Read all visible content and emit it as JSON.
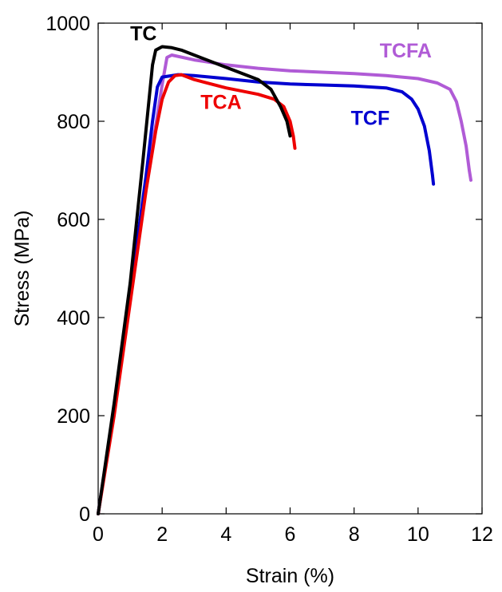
{
  "chart_data": {
    "type": "line",
    "xlabel": "Strain (%)",
    "ylabel": "Stress (MPa)",
    "xlim": [
      0,
      12
    ],
    "ylim": [
      0,
      1000
    ],
    "xticks": [
      0,
      2,
      4,
      6,
      8,
      10,
      12
    ],
    "yticks": [
      0,
      200,
      400,
      600,
      800,
      1000
    ],
    "grid": false,
    "series": [
      {
        "name": "TCFA",
        "color": "#b05bd6",
        "label_at": [
          8.8,
          930
        ],
        "points": [
          [
            0,
            0
          ],
          [
            0.5,
            215
          ],
          [
            1.0,
            450
          ],
          [
            1.5,
            680
          ],
          [
            1.8,
            790
          ],
          [
            2.0,
            875
          ],
          [
            2.15,
            930
          ],
          [
            2.3,
            935
          ],
          [
            3,
            925
          ],
          [
            4,
            915
          ],
          [
            5,
            908
          ],
          [
            6,
            903
          ],
          [
            7,
            900
          ],
          [
            8,
            897
          ],
          [
            9,
            893
          ],
          [
            10,
            887
          ],
          [
            10.6,
            878
          ],
          [
            11.0,
            865
          ],
          [
            11.2,
            840
          ],
          [
            11.35,
            800
          ],
          [
            11.5,
            750
          ],
          [
            11.6,
            700
          ],
          [
            11.65,
            680
          ]
        ]
      },
      {
        "name": "TCF",
        "color": "#0000d0",
        "label_at": [
          7.9,
          793
        ],
        "points": [
          [
            0,
            0
          ],
          [
            0.5,
            215
          ],
          [
            1.0,
            450
          ],
          [
            1.5,
            690
          ],
          [
            1.7,
            800
          ],
          [
            1.85,
            870
          ],
          [
            2.0,
            890
          ],
          [
            2.5,
            895
          ],
          [
            3,
            893
          ],
          [
            4,
            887
          ],
          [
            5,
            880
          ],
          [
            6,
            876
          ],
          [
            7,
            874
          ],
          [
            8,
            872
          ],
          [
            9,
            868
          ],
          [
            9.5,
            860
          ],
          [
            9.8,
            845
          ],
          [
            10.0,
            825
          ],
          [
            10.2,
            790
          ],
          [
            10.35,
            740
          ],
          [
            10.45,
            690
          ],
          [
            10.48,
            672
          ]
        ]
      },
      {
        "name": "TCA",
        "color": "#ee0000",
        "label_at": [
          3.2,
          825
        ],
        "points": [
          [
            0,
            0
          ],
          [
            0.5,
            200
          ],
          [
            1.0,
            430
          ],
          [
            1.5,
            660
          ],
          [
            1.8,
            780
          ],
          [
            2.0,
            845
          ],
          [
            2.2,
            880
          ],
          [
            2.4,
            893
          ],
          [
            2.6,
            895
          ],
          [
            3,
            885
          ],
          [
            4,
            868
          ],
          [
            5,
            855
          ],
          [
            5.5,
            845
          ],
          [
            5.8,
            830
          ],
          [
            6.0,
            800
          ],
          [
            6.1,
            770
          ],
          [
            6.15,
            745
          ]
        ]
      },
      {
        "name": "TC",
        "color": "#000000",
        "label_at": [
          1.0,
          965
        ],
        "points": [
          [
            0,
            0
          ],
          [
            0.5,
            225
          ],
          [
            1.0,
            470
          ],
          [
            1.4,
            720
          ],
          [
            1.6,
            850
          ],
          [
            1.7,
            915
          ],
          [
            1.8,
            945
          ],
          [
            2.0,
            952
          ],
          [
            2.3,
            950
          ],
          [
            2.6,
            945
          ],
          [
            3,
            935
          ],
          [
            4,
            910
          ],
          [
            5,
            885
          ],
          [
            5.4,
            865
          ],
          [
            5.7,
            830
          ],
          [
            5.9,
            800
          ],
          [
            6.0,
            770
          ]
        ]
      }
    ]
  }
}
